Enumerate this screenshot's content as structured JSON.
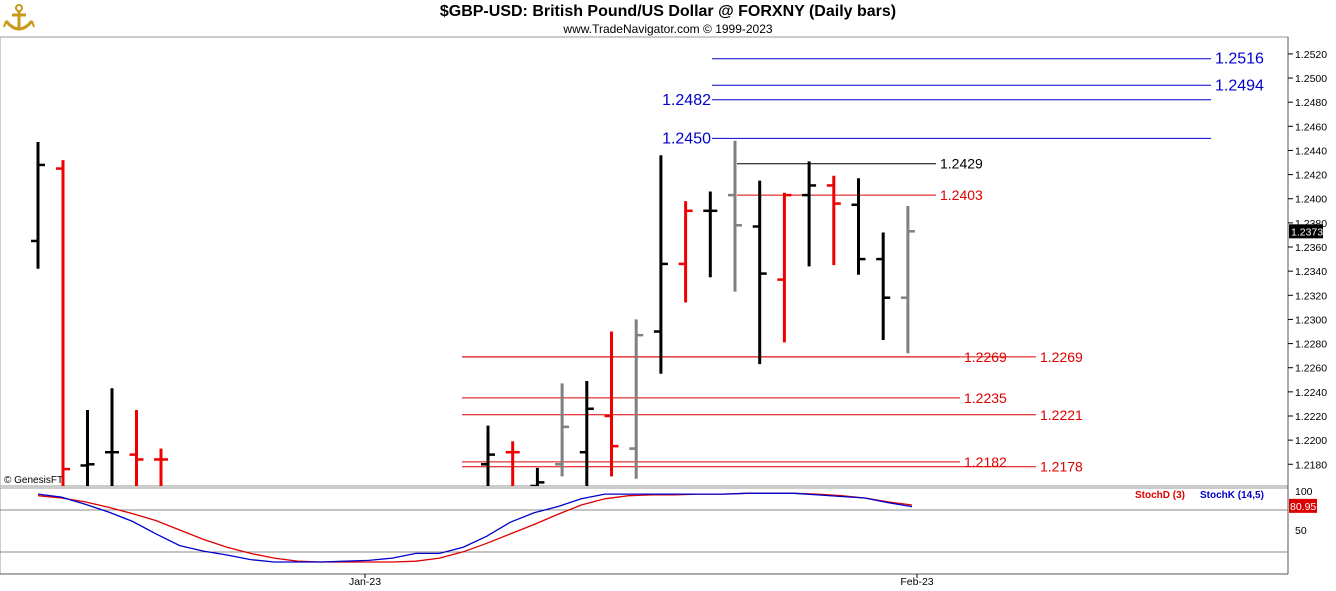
{
  "header": {
    "title": "$GBP-USD:  British Pound/US Dollar @ FORXNY  (Daily bars)",
    "subtitle": "www.TradeNavigator.com © 1999-2023",
    "logo_icon": "anchor-icon"
  },
  "colors": {
    "up": "#000000",
    "down": "#ee0000",
    "neutral": "#808080",
    "level_blue": "#0000cc",
    "level_red": "#dd0000",
    "stoch_d": "#dd0000",
    "stoch_k": "#0000cc"
  },
  "chart_data": [
    {
      "type": "ohlc",
      "price_axis": {
        "ylim": [
          1.2162,
          1.2534
        ],
        "ticks": [
          "1.2520",
          "1.2500",
          "1.2480",
          "1.2460",
          "1.2440",
          "1.2420",
          "1.2400",
          "1.2380",
          "1.2360",
          "1.2340",
          "1.2320",
          "1.2300",
          "1.2280",
          "1.2260",
          "1.2240",
          "1.2220",
          "1.2200",
          "1.2180"
        ],
        "current_price": "1.2373"
      },
      "x_labels": [
        "Jan-23",
        "Feb-23"
      ],
      "copyright": "© GenesisFT",
      "bars": [
        {
          "o": 1.2365,
          "h": 1.2447,
          "l": 1.2342,
          "c": 1.2428,
          "color": "up"
        },
        {
          "o": 1.2425,
          "h": 1.2432,
          "l": 1.2162,
          "c": 1.2176,
          "color": "down"
        },
        {
          "o": 1.2179,
          "h": 1.2225,
          "l": 1.2162,
          "c": 1.218,
          "color": "up"
        },
        {
          "o": 1.219,
          "h": 1.2243,
          "l": 1.2162,
          "c": 1.219,
          "color": "up"
        },
        {
          "o": 1.2188,
          "h": 1.2225,
          "l": 1.2162,
          "c": 1.2184,
          "color": "down"
        },
        {
          "o": 1.2184,
          "h": 1.2193,
          "l": 1.2162,
          "c": 1.2184,
          "color": "down"
        },
        {
          "o": 1.218,
          "h": 1.2212,
          "l": 1.2162,
          "c": 1.2188,
          "color": "up"
        },
        {
          "o": 1.219,
          "h": 1.2199,
          "l": 1.2162,
          "c": 1.219,
          "color": "down"
        },
        {
          "o": 1.2162,
          "h": 1.2177,
          "l": 1.2162,
          "c": 1.2165,
          "color": "up"
        },
        {
          "o": 1.218,
          "h": 1.2247,
          "l": 1.217,
          "c": 1.2211,
          "color": "neutral"
        },
        {
          "o": 1.219,
          "h": 1.2249,
          "l": 1.2162,
          "c": 1.2226,
          "color": "up"
        },
        {
          "o": 1.222,
          "h": 1.229,
          "l": 1.217,
          "c": 1.2195,
          "color": "down"
        },
        {
          "o": 1.2193,
          "h": 1.23,
          "l": 1.2168,
          "c": 1.2287,
          "color": "neutral"
        },
        {
          "o": 1.229,
          "h": 1.2436,
          "l": 1.2255,
          "c": 1.2346,
          "color": "up"
        },
        {
          "o": 1.2346,
          "h": 1.2398,
          "l": 1.2314,
          "c": 1.239,
          "color": "down"
        },
        {
          "o": 1.239,
          "h": 1.2406,
          "l": 1.2335,
          "c": 1.239,
          "color": "up"
        },
        {
          "o": 1.2403,
          "h": 1.2448,
          "l": 1.2323,
          "c": 1.2378,
          "color": "neutral"
        },
        {
          "o": 1.2377,
          "h": 1.2415,
          "l": 1.2263,
          "c": 1.2338,
          "color": "up"
        },
        {
          "o": 1.2333,
          "h": 1.2405,
          "l": 1.2281,
          "c": 1.2403,
          "color": "down"
        },
        {
          "o": 1.2403,
          "h": 1.2431,
          "l": 1.2344,
          "c": 1.2411,
          "color": "up"
        },
        {
          "o": 1.2411,
          "h": 1.2419,
          "l": 1.2345,
          "c": 1.2396,
          "color": "down"
        },
        {
          "o": 1.2395,
          "h": 1.2417,
          "l": 1.2337,
          "c": 1.235,
          "color": "up"
        },
        {
          "o": 1.235,
          "h": 1.2372,
          "l": 1.2283,
          "c": 1.2318,
          "color": "up"
        },
        {
          "o": 1.2318,
          "h": 1.2394,
          "l": 1.2272,
          "c": 1.2373,
          "color": "neutral"
        }
      ],
      "levels": [
        {
          "value": 1.2516,
          "label": "1.2516",
          "color": "blue",
          "label_pos": "right"
        },
        {
          "value": 1.2494,
          "label": "1.2494",
          "color": "blue",
          "label_pos": "right"
        },
        {
          "value": 1.2482,
          "label": "1.2482",
          "color": "blue",
          "label_pos": "left"
        },
        {
          "value": 1.245,
          "label": "1.2450",
          "color": "blue",
          "label_pos": "left"
        },
        {
          "value": 1.2429,
          "label": "1.2429",
          "color": "black",
          "label_pos": "right"
        },
        {
          "value": 1.2403,
          "label": "1.2403",
          "color": "red",
          "label_pos": "right"
        },
        {
          "value": 1.2269,
          "label": "1.2269",
          "color": "red",
          "label_pos": "mid"
        },
        {
          "value": 1.2269,
          "label": "1.2269",
          "color": "red",
          "label_pos": "right"
        },
        {
          "value": 1.2235,
          "label": "1.2235",
          "color": "red",
          "label_pos": "mid"
        },
        {
          "value": 1.2221,
          "label": "1.2221",
          "color": "red",
          "label_pos": "right"
        },
        {
          "value": 1.2182,
          "label": "1.2182",
          "color": "red",
          "label_pos": "mid"
        },
        {
          "value": 1.2178,
          "label": "1.2178",
          "color": "red",
          "label_pos": "right"
        }
      ]
    },
    {
      "type": "line",
      "ylim": [
        0,
        100
      ],
      "ticks": [
        "100",
        "50"
      ],
      "current_value": "80.95",
      "legend": [
        "StochD (3)",
        "StochK (14,5)"
      ],
      "series": [
        {
          "name": "StochD (3)",
          "color": "red",
          "values": [
            94,
            91,
            86,
            79,
            71,
            62,
            50,
            38,
            28,
            20,
            14,
            10,
            9,
            9,
            9,
            9,
            10,
            14,
            22,
            33,
            45,
            57,
            70,
            82,
            90,
            94,
            95,
            95,
            96,
            96,
            97,
            97,
            97,
            96,
            94,
            91,
            86,
            82
          ]
        },
        {
          "name": "StochK (14,5)",
          "color": "blue",
          "values": [
            96,
            92,
            83,
            73,
            61,
            45,
            30,
            23,
            18,
            12,
            9,
            9,
            9,
            10,
            11,
            14,
            20,
            20,
            28,
            42,
            60,
            72,
            80,
            90,
            96,
            96,
            96,
            96,
            96,
            96,
            97,
            97,
            97,
            95,
            93,
            91,
            85,
            80
          ]
        }
      ]
    }
  ]
}
